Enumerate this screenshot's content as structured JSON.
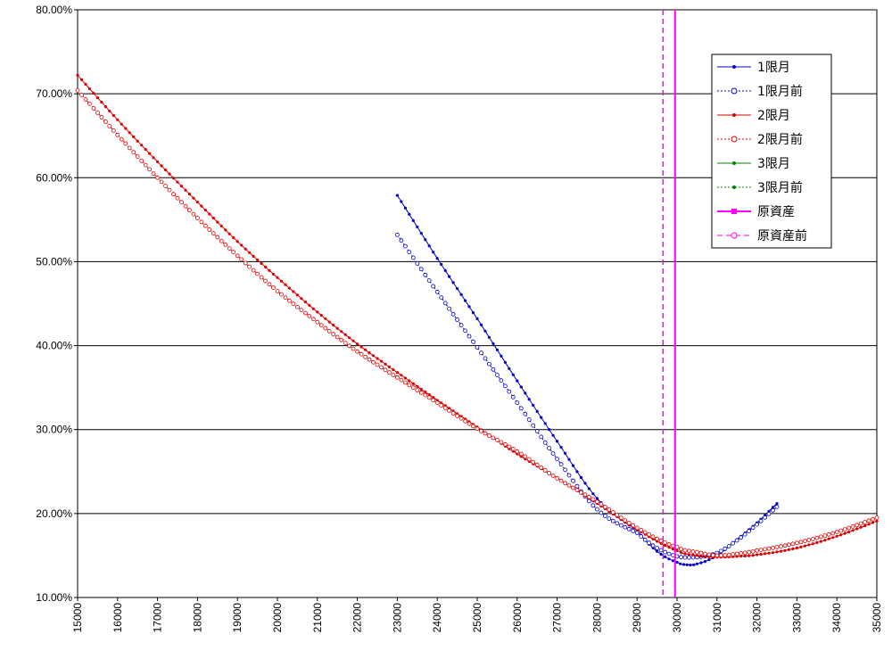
{
  "chart_data": {
    "type": "line",
    "title": "",
    "xlabel": "",
    "ylabel": "",
    "xlim": [
      15000,
      35000
    ],
    "ylim": [
      10,
      80
    ],
    "grid": "horizontal",
    "legend_position": "right",
    "x_ticks": [
      "15000",
      "16000",
      "17000",
      "18000",
      "19000",
      "20000",
      "21000",
      "22000",
      "23000",
      "24000",
      "25000",
      "26000",
      "27000",
      "28000",
      "29000",
      "30000",
      "31000",
      "32000",
      "33000",
      "34000",
      "35000"
    ],
    "y_ticks": [
      "10.00%",
      "20.00%",
      "30.00%",
      "40.00%",
      "50.00%",
      "60.00%",
      "70.00%",
      "80.00%"
    ],
    "series": [
      {
        "name": "1限月",
        "color": "#0000cc",
        "dash": "solid",
        "marker": "filled",
        "x": [
          23000,
          24000,
          25000,
          26000,
          27000,
          28000,
          29000,
          29500,
          30000,
          30250,
          30500,
          31000,
          31500,
          32000,
          32500
        ],
        "y": [
          57.9,
          50.4,
          43.2,
          35.8,
          28.6,
          21.8,
          18.0,
          15.5,
          14.2,
          13.9,
          14.0,
          15.0,
          16.9,
          18.9,
          21.2
        ]
      },
      {
        "name": "1限月前",
        "color": "#0000cc",
        "dash": "dotted",
        "marker": "open",
        "x": [
          23000,
          24000,
          25000,
          26000,
          27000,
          28000,
          29000,
          29500,
          30000,
          30500,
          31000,
          31500,
          32000,
          32500
        ],
        "y": [
          53.2,
          46.4,
          39.8,
          33.2,
          26.5,
          20.5,
          17.7,
          15.9,
          14.9,
          14.8,
          15.3,
          16.8,
          18.7,
          20.8
        ]
      },
      {
        "name": "2限月",
        "color": "#dd0000",
        "dash": "solid",
        "marker": "filled",
        "x": [
          15000,
          16000,
          17000,
          18000,
          19000,
          20000,
          21000,
          22000,
          23000,
          24000,
          25000,
          26000,
          27000,
          28000,
          29000,
          30000,
          30500,
          31000,
          31500,
          32000,
          33000,
          34000,
          35000
        ],
        "y": [
          72.2,
          66.9,
          61.9,
          57.1,
          52.4,
          48.1,
          44.0,
          40.2,
          36.8,
          33.5,
          30.3,
          27.1,
          24.2,
          21.2,
          18.1,
          15.6,
          15.0,
          14.8,
          14.9,
          15.1,
          15.9,
          17.3,
          19.1
        ]
      },
      {
        "name": "2限月前",
        "color": "#dd0000",
        "dash": "dotted",
        "marker": "open",
        "x": [
          15000,
          16000,
          17000,
          18000,
          19000,
          20000,
          21000,
          22000,
          23000,
          24000,
          25000,
          26000,
          27000,
          28000,
          29000,
          30000,
          30500,
          31000,
          31500,
          32000,
          33000,
          34000,
          35000
        ],
        "y": [
          70.4,
          65.1,
          60.0,
          55.2,
          50.7,
          46.5,
          42.8,
          39.3,
          36.2,
          33.2,
          30.1,
          27.4,
          24.2,
          21.4,
          18.3,
          16.0,
          15.4,
          15.0,
          15.2,
          15.6,
          16.5,
          17.8,
          19.5
        ]
      },
      {
        "name": "3限月",
        "color": "#008000",
        "dash": "solid",
        "marker": "filled",
        "x": [],
        "y": []
      },
      {
        "name": "3限月前",
        "color": "#008000",
        "dash": "dotted",
        "marker": "filled",
        "x": [],
        "y": []
      },
      {
        "name": "原資産",
        "color": "#ff00ff",
        "dash": "solid",
        "marker": "square",
        "vertical_x": 29950
      },
      {
        "name": "原資産前",
        "color": "#ff00ff",
        "dash": "dashed",
        "marker": "open",
        "vertical_x": 29650
      }
    ]
  }
}
